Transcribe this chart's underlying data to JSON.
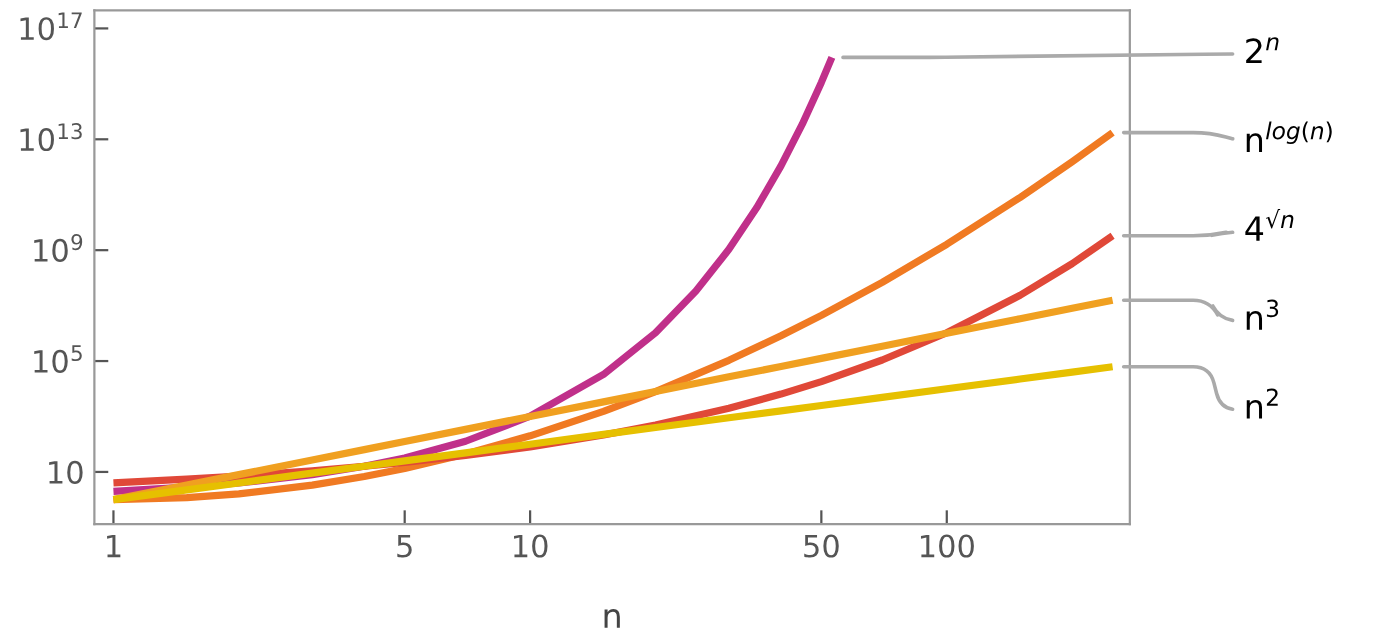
{
  "chart_data": {
    "type": "line",
    "xlabel": "n",
    "log": "xy",
    "grid": false,
    "legend": false,
    "marker": "none",
    "line_style": "solid",
    "xlim": [
      0.9,
      275
    ],
    "ylim": [
      0.13,
      4.5e+17
    ],
    "xticks": [
      1,
      5,
      10,
      50,
      100
    ],
    "yticks": [
      10,
      {
        "value": 100000.0,
        "label": "10$^{5}$"
      },
      {
        "value": 1000000000.0,
        "label": "10$^{9}$"
      },
      {
        "value": 10000000000000.0,
        "label": "10$^{13}$"
      },
      {
        "value": 1e+17,
        "label": "10$^{17}$"
      }
    ],
    "series": [
      {
        "name": "2$^{n}$",
        "color": "#c0308a",
        "x": [
          1,
          1.5,
          2,
          3,
          4,
          5,
          7,
          10,
          15,
          20,
          25,
          30,
          35,
          40,
          45,
          50,
          53
        ],
        "values": [
          2,
          2.83,
          4,
          8,
          16,
          32,
          128,
          1024,
          32768,
          1048576,
          33600000.0,
          1070000000.0,
          34400000000.0,
          1100000000000.0,
          35200000000000.0,
          1130000000000000.0,
          9010000000000000.0
        ]
      },
      {
        "name": "n$^{log(n)}$",
        "color": "#f07a22",
        "x": [
          1,
          1.5,
          2,
          3,
          4,
          5,
          7,
          10,
          15,
          20,
          30,
          40,
          50,
          70,
          100,
          150,
          200,
          250
        ],
        "values": [
          1,
          1.18,
          1.62,
          3.34,
          6.83,
          13.3,
          44.1,
          201,
          1530,
          7890,
          106000.0,
          814000.0,
          4440000.0,
          69000000.0,
          1630000000.0,
          80000000000.0,
          1560000000000.0,
          17400000000000.0
        ]
      },
      {
        "name": "4$^{√n}$",
        "color": "#e04838",
        "x": [
          1,
          1.5,
          2,
          3,
          4,
          5,
          7,
          10,
          15,
          20,
          30,
          40,
          50,
          70,
          100,
          150,
          200,
          250
        ],
        "values": [
          4,
          5.46,
          7.1,
          11,
          16,
          22.2,
          39.2,
          80.2,
          215,
          493,
          1985,
          6425,
          18100,
          109000.0,
          1050000.0,
          23600000.0,
          327000000.0,
          3310000000.0
        ]
      },
      {
        "name": "n$^{3}$",
        "color": "#f0a020",
        "x": [
          1,
          1.5,
          2,
          3,
          4,
          5,
          7,
          10,
          15,
          20,
          30,
          40,
          50,
          70,
          100,
          150,
          200,
          250
        ],
        "values": [
          1,
          3.38,
          8,
          27,
          64,
          125,
          343,
          1000,
          3375,
          8000,
          27000,
          64000,
          125000,
          343000,
          1000000.0,
          3380000.0,
          8000000.0,
          15600000.0
        ]
      },
      {
        "name": "n$^{2}$",
        "color": "#e6c000",
        "x": [
          1,
          1.5,
          2,
          3,
          4,
          5,
          7,
          10,
          15,
          20,
          30,
          40,
          50,
          70,
          100,
          150,
          200,
          250
        ],
        "values": [
          1,
          2.25,
          4,
          9,
          16,
          25,
          49,
          100,
          225,
          400,
          900,
          1600,
          2500,
          4900,
          10000,
          22500,
          40000,
          62500
        ]
      }
    ]
  }
}
